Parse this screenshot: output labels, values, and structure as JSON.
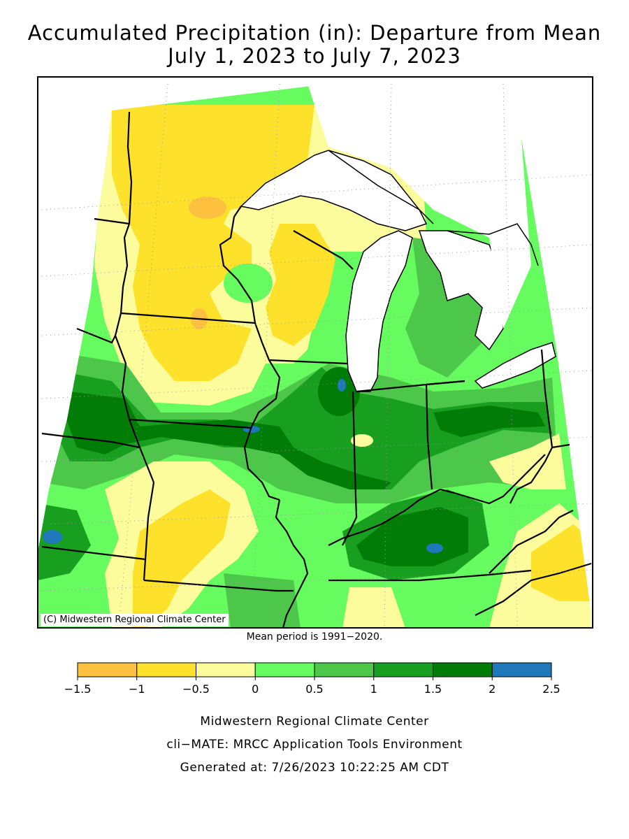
{
  "title_line1": "Accumulated Precipitation (in): Departure from Mean",
  "title_line2": "July 1, 2023 to July 7, 2023",
  "map_credit": "(C) Midwestern Regional Climate Center",
  "mean_period": "Mean period is 1991−2020.",
  "legend": {
    "bins": [
      {
        "from": -1.5,
        "to": -1.0,
        "color": "#fdc13f"
      },
      {
        "from": -1.0,
        "to": -0.5,
        "color": "#fde12a"
      },
      {
        "from": -0.5,
        "to": 0.0,
        "color": "#fdfc9c"
      },
      {
        "from": 0.0,
        "to": 0.5,
        "color": "#66fb5e"
      },
      {
        "from": 0.5,
        "to": 1.0,
        "color": "#4dc74a"
      },
      {
        "from": 1.0,
        "to": 1.5,
        "color": "#199f20"
      },
      {
        "from": 1.5,
        "to": 2.0,
        "color": "#017d07"
      },
      {
        "from": 2.0,
        "to": 2.5,
        "color": "#1e78b9"
      }
    ],
    "tick_labels": [
      "−1.5",
      "−1",
      "−0.5",
      "0",
      "0.5",
      "1",
      "1.5",
      "2",
      "2.5"
    ]
  },
  "footer": {
    "line1": "Midwestern Regional Climate Center",
    "line2": "cli−MATE: MRCC Application Tools Environment",
    "line3": "Generated at: 7/26/2023 10:22:25 AM CDT"
  },
  "colors": {
    "water": "#ffffff",
    "border": "#000000",
    "neg_1_5": "#fdc13f",
    "neg_1": "#fde12a",
    "neg_0_5": "#fdfc9c",
    "pos_0": "#66fb5e",
    "pos_0_5": "#4dc74a",
    "pos_1": "#199f20",
    "pos_1_5": "#017d07",
    "pos_2": "#1e78b9"
  }
}
